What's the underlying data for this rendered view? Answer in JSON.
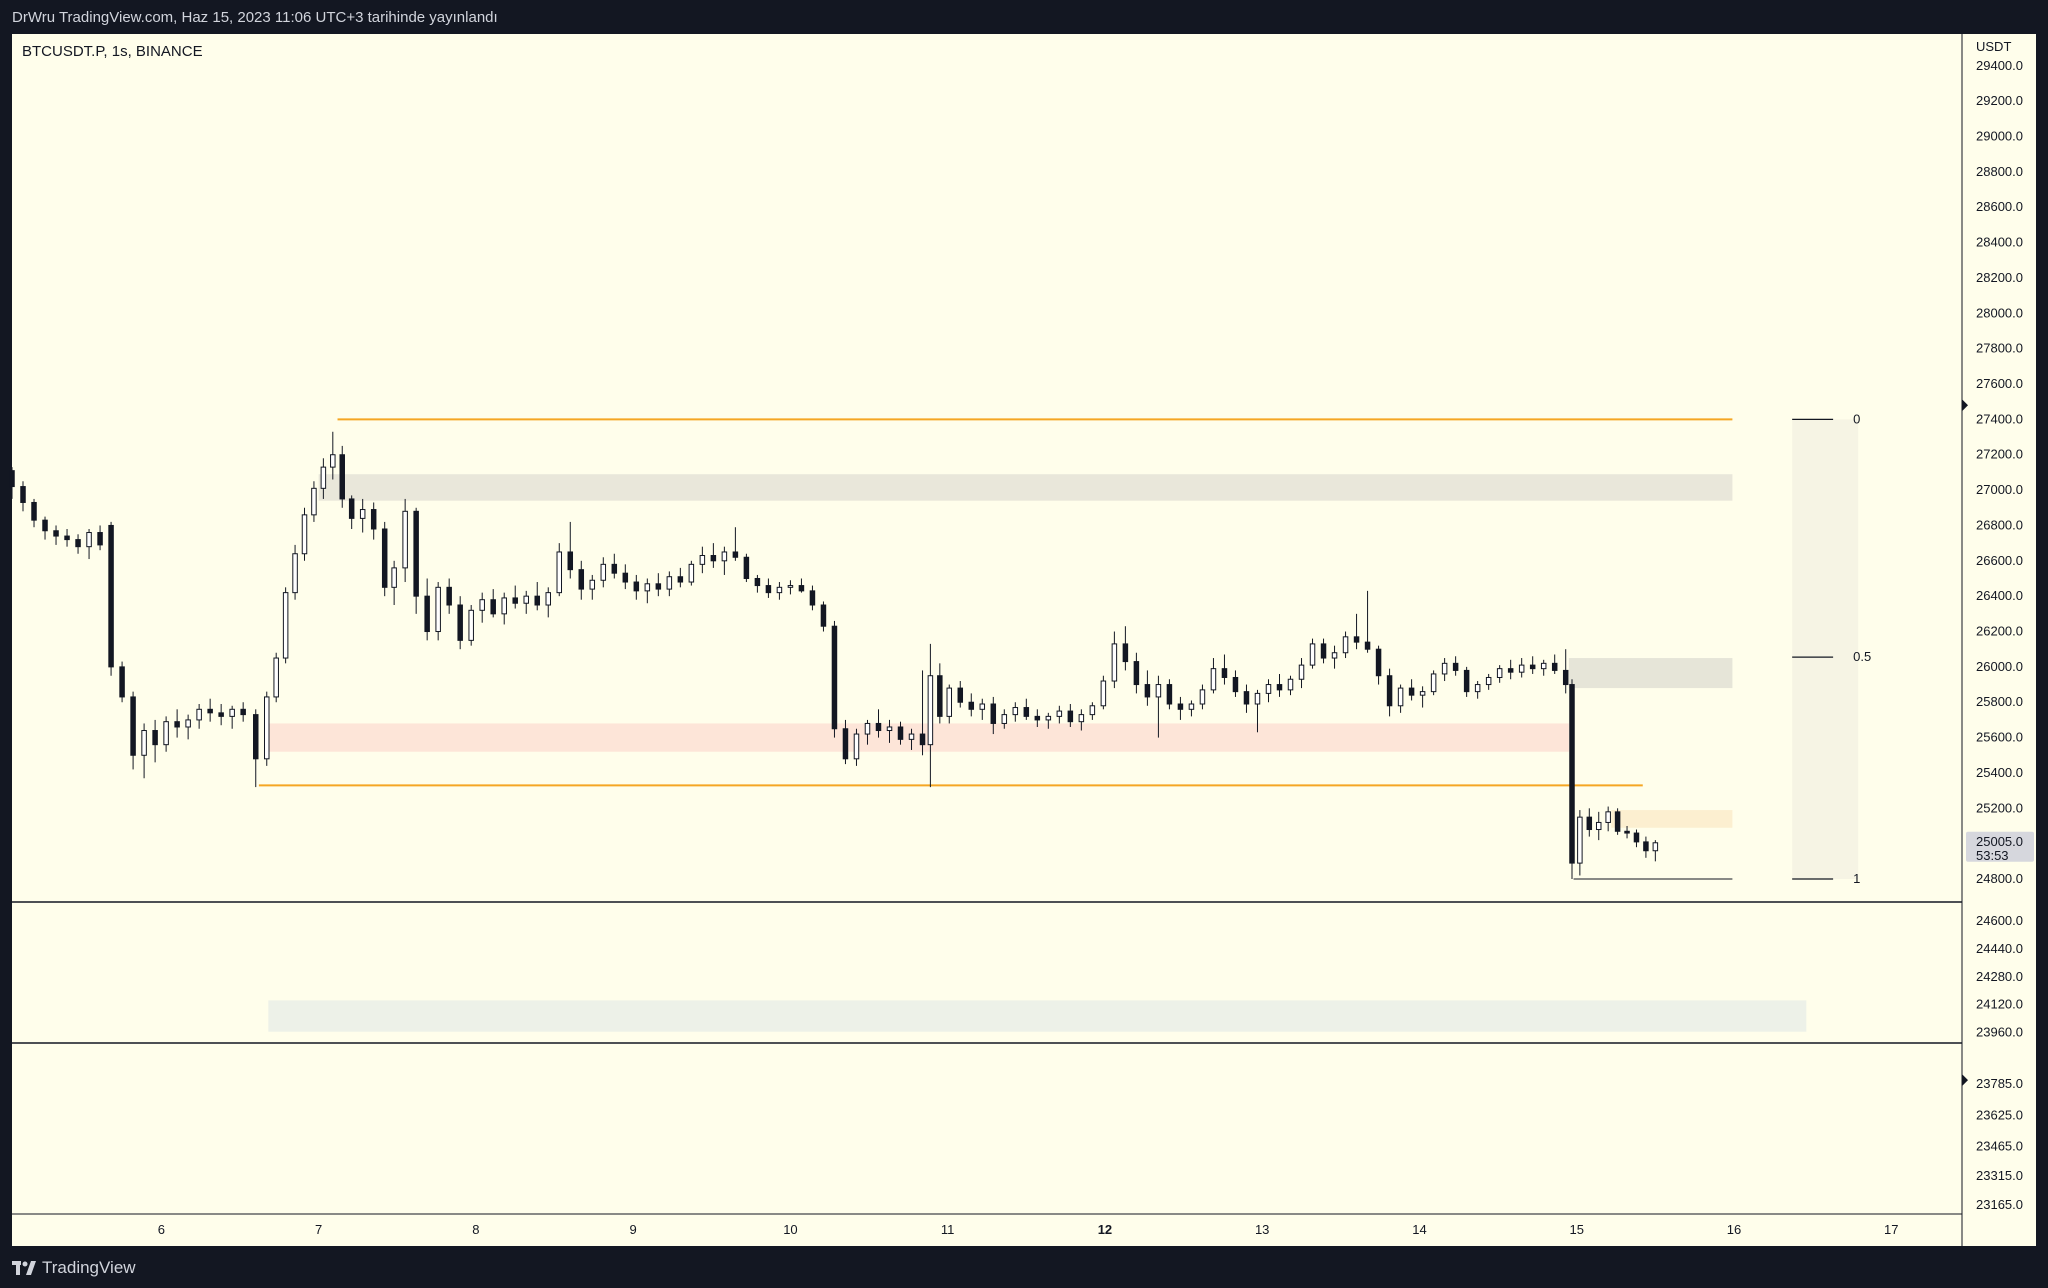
{
  "header": {
    "published": "DrWru TradingView.com, Haz 15, 2023 11:06 UTC+3 tarihinde yayınlandı"
  },
  "footer": {
    "brand": "TradingView",
    "logo_icon": "tradingview-logo-icon"
  },
  "chart_data": {
    "type": "candlestick",
    "symbol": "BTCUSDT.P, 1s, BINANCE",
    "currency": "USDT",
    "x_ticks": [
      {
        "label": "6",
        "day": 6,
        "bold": false
      },
      {
        "label": "7",
        "day": 7,
        "bold": false
      },
      {
        "label": "8",
        "day": 8,
        "bold": false
      },
      {
        "label": "9",
        "day": 9,
        "bold": false
      },
      {
        "label": "10",
        "day": 10,
        "bold": false
      },
      {
        "label": "11",
        "day": 11,
        "bold": false
      },
      {
        "label": "12",
        "day": 12,
        "bold": true
      },
      {
        "label": "13",
        "day": 13,
        "bold": false
      },
      {
        "label": "14",
        "day": 14,
        "bold": false
      },
      {
        "label": "15",
        "day": 15,
        "bold": false
      },
      {
        "label": "16",
        "day": 16,
        "bold": false
      },
      {
        "label": "17",
        "day": 17,
        "bold": false
      }
    ],
    "x_range": [
      5.05,
      17.45
    ],
    "main_pane": {
      "y_range": [
        24670,
        29580
      ],
      "y_ticks": [
        "29400.0",
        "29200.0",
        "29000.0",
        "28800.0",
        "28600.0",
        "28400.0",
        "28200.0",
        "28000.0",
        "27800.0",
        "27600.0",
        "27400.0",
        "27200.0",
        "27000.0",
        "26800.0",
        "26600.0",
        "26400.0",
        "26200.0",
        "26000.0",
        "25800.0",
        "25600.0",
        "25400.0",
        "25200.0",
        "24800.0"
      ],
      "last_price": "25005.0",
      "countdown": "53:53"
    },
    "lower_pane_1": {
      "y_range": [
        23900,
        24710
      ],
      "y_ticks": [
        "24600.0",
        "24440.0",
        "24280.0",
        "24120.0",
        "23960.0"
      ]
    },
    "lower_pane_2": {
      "y_range": [
        23120,
        23995
      ],
      "y_ticks": [
        "23785.0",
        "23625.0",
        "23465.0",
        "23315.0",
        "23165.0"
      ]
    },
    "range_lines": [
      {
        "name": "range-high-line",
        "x0": 7.12,
        "x1": 15.99,
        "y": 27400,
        "color": "#f5a623"
      },
      {
        "name": "range-low-line",
        "x0": 6.62,
        "x1": 15.42,
        "y": 25330,
        "color": "#f5a623"
      }
    ],
    "low_line": {
      "x0": 14.98,
      "x1": 15.99,
      "y": 24800
    },
    "zones": [
      {
        "name": "supply-zone-top",
        "x0": 7.0,
        "x1": 15.99,
        "y0": 26940,
        "y1": 27090,
        "color": "#e9e7da"
      },
      {
        "name": "demand-zone",
        "x0": 6.68,
        "x1": 14.95,
        "y0": 25520,
        "y1": 25680,
        "color": "#fde5d8"
      },
      {
        "name": "supply-zone-right",
        "x0": 14.95,
        "x1": 15.99,
        "y0": 25880,
        "y1": 26050,
        "color": "#e6e5d8"
      },
      {
        "name": "fvg-zone",
        "x0": 15.22,
        "x1": 15.99,
        "y0": 25090,
        "y1": 25190,
        "color": "#fcefd0"
      }
    ],
    "lower_zone": {
      "x0": 6.68,
      "x1": 16.46,
      "y0": 23965,
      "y1": 24145,
      "color": "#edf1e8"
    },
    "fib": {
      "x0": 16.37,
      "x1": 16.79,
      "levels": [
        {
          "label": "0",
          "y": 27400
        },
        {
          "label": "0.5",
          "y": 26055
        },
        {
          "label": "1",
          "y": 24800
        }
      ],
      "color": "#f6f4e4"
    },
    "candles": [
      [
        5.05,
        27110,
        27130,
        26950,
        27020
      ],
      [
        5.12,
        27020,
        27050,
        26880,
        26930
      ],
      [
        5.19,
        26930,
        26950,
        26790,
        26830
      ],
      [
        5.26,
        26830,
        26850,
        26720,
        26770
      ],
      [
        5.33,
        26770,
        26800,
        26690,
        26740
      ],
      [
        5.4,
        26740,
        26780,
        26680,
        26720
      ],
      [
        5.47,
        26720,
        26750,
        26640,
        26680
      ],
      [
        5.54,
        26680,
        26780,
        26610,
        26760
      ],
      [
        5.61,
        26760,
        26800,
        26660,
        26690
      ],
      [
        5.68,
        26800,
        26820,
        25950,
        26000
      ],
      [
        5.75,
        26000,
        26030,
        25800,
        25830
      ],
      [
        5.82,
        25830,
        25860,
        25420,
        25500
      ],
      [
        5.89,
        25500,
        25680,
        25370,
        25640
      ],
      [
        5.96,
        25640,
        25700,
        25460,
        25560
      ],
      [
        6.03,
        25560,
        25720,
        25520,
        25690
      ],
      [
        6.1,
        25690,
        25760,
        25600,
        25660
      ],
      [
        6.17,
        25660,
        25730,
        25590,
        25700
      ],
      [
        6.24,
        25700,
        25790,
        25650,
        25760
      ],
      [
        6.31,
        25760,
        25820,
        25690,
        25740
      ],
      [
        6.38,
        25740,
        25790,
        25670,
        25720
      ],
      [
        6.45,
        25720,
        25780,
        25650,
        25760
      ],
      [
        6.52,
        25760,
        25800,
        25690,
        25730
      ],
      [
        6.6,
        25730,
        25760,
        25320,
        25480
      ],
      [
        6.67,
        25480,
        25860,
        25440,
        25830
      ],
      [
        6.73,
        25830,
        26080,
        25800,
        26050
      ],
      [
        6.79,
        26050,
        26450,
        26020,
        26420
      ],
      [
        6.85,
        26420,
        26690,
        26380,
        26640
      ],
      [
        6.91,
        26640,
        26900,
        26600,
        26860
      ],
      [
        6.97,
        26860,
        27050,
        26820,
        27010
      ],
      [
        7.03,
        27010,
        27180,
        26950,
        27130
      ],
      [
        7.09,
        27130,
        27330,
        27060,
        27200
      ],
      [
        7.15,
        27200,
        27250,
        26900,
        26950
      ],
      [
        7.21,
        26950,
        26970,
        26780,
        26840
      ],
      [
        7.28,
        26840,
        26950,
        26760,
        26890
      ],
      [
        7.35,
        26890,
        26930,
        26720,
        26780
      ],
      [
        7.42,
        26780,
        26820,
        26400,
        26450
      ],
      [
        7.48,
        26450,
        26600,
        26350,
        26560
      ],
      [
        7.55,
        26560,
        26950,
        26480,
        26880
      ],
      [
        7.62,
        26880,
        26900,
        26300,
        26400
      ],
      [
        7.69,
        26400,
        26500,
        26150,
        26200
      ],
      [
        7.76,
        26200,
        26480,
        26150,
        26450
      ],
      [
        7.83,
        26450,
        26500,
        26300,
        26350
      ],
      [
        7.9,
        26350,
        26400,
        26100,
        26150
      ],
      [
        7.97,
        26150,
        26350,
        26120,
        26320
      ],
      [
        8.04,
        26320,
        26420,
        26250,
        26380
      ],
      [
        8.11,
        26380,
        26440,
        26280,
        26300
      ],
      [
        8.18,
        26300,
        26420,
        26240,
        26390
      ],
      [
        8.25,
        26390,
        26460,
        26330,
        26360
      ],
      [
        8.32,
        26360,
        26430,
        26300,
        26400
      ],
      [
        8.39,
        26400,
        26480,
        26320,
        26350
      ],
      [
        8.46,
        26350,
        26450,
        26280,
        26420
      ],
      [
        8.53,
        26420,
        26700,
        26400,
        26650
      ],
      [
        8.6,
        26650,
        26820,
        26500,
        26550
      ],
      [
        8.67,
        26550,
        26600,
        26380,
        26440
      ],
      [
        8.74,
        26440,
        26520,
        26380,
        26490
      ],
      [
        8.81,
        26490,
        26620,
        26450,
        26580
      ],
      [
        8.88,
        26580,
        26640,
        26500,
        26530
      ],
      [
        8.95,
        26530,
        26580,
        26440,
        26480
      ],
      [
        9.02,
        26480,
        26520,
        26380,
        26430
      ],
      [
        9.09,
        26430,
        26500,
        26360,
        26470
      ],
      [
        9.16,
        26470,
        26530,
        26400,
        26440
      ],
      [
        9.23,
        26440,
        26540,
        26400,
        26510
      ],
      [
        9.3,
        26510,
        26560,
        26450,
        26480
      ],
      [
        9.37,
        26480,
        26600,
        26460,
        26580
      ],
      [
        9.44,
        26580,
        26680,
        26530,
        26630
      ],
      [
        9.51,
        26630,
        26700,
        26560,
        26600
      ],
      [
        9.58,
        26600,
        26680,
        26520,
        26650
      ],
      [
        9.65,
        26650,
        26790,
        26600,
        26620
      ],
      [
        9.72,
        26620,
        26640,
        26480,
        26500
      ],
      [
        9.79,
        26500,
        26520,
        26420,
        26460
      ],
      [
        9.86,
        26460,
        26500,
        26390,
        26420
      ],
      [
        9.93,
        26420,
        26480,
        26380,
        26450
      ],
      [
        10.0,
        26450,
        26490,
        26410,
        26460
      ],
      [
        10.07,
        26460,
        26500,
        26420,
        26430
      ],
      [
        10.14,
        26430,
        26460,
        26320,
        26350
      ],
      [
        10.21,
        26350,
        26370,
        26200,
        26230
      ],
      [
        10.28,
        26230,
        26260,
        25600,
        25650
      ],
      [
        10.35,
        25650,
        25700,
        25450,
        25480
      ],
      [
        10.42,
        25480,
        25650,
        25440,
        25620
      ],
      [
        10.49,
        25620,
        25700,
        25560,
        25680
      ],
      [
        10.56,
        25680,
        25760,
        25600,
        25640
      ],
      [
        10.63,
        25640,
        25700,
        25570,
        25660
      ],
      [
        10.7,
        25660,
        25690,
        25560,
        25590
      ],
      [
        10.77,
        25590,
        25650,
        25530,
        25620
      ],
      [
        10.84,
        25620,
        25980,
        25500,
        25560
      ],
      [
        10.89,
        25560,
        26130,
        25320,
        25950
      ],
      [
        10.95,
        25950,
        26020,
        25680,
        25720
      ],
      [
        11.01,
        25720,
        25900,
        25680,
        25880
      ],
      [
        11.08,
        25880,
        25920,
        25770,
        25800
      ],
      [
        11.15,
        25800,
        25850,
        25720,
        25760
      ],
      [
        11.22,
        25760,
        25820,
        25700,
        25790
      ],
      [
        11.29,
        25790,
        25830,
        25620,
        25680
      ],
      [
        11.36,
        25680,
        25760,
        25650,
        25730
      ],
      [
        11.43,
        25730,
        25800,
        25690,
        25770
      ],
      [
        11.5,
        25770,
        25820,
        25700,
        25720
      ],
      [
        11.57,
        25720,
        25760,
        25660,
        25700
      ],
      [
        11.64,
        25700,
        25740,
        25650,
        25720
      ],
      [
        11.71,
        25720,
        25780,
        25680,
        25750
      ],
      [
        11.78,
        25750,
        25790,
        25660,
        25690
      ],
      [
        11.85,
        25690,
        25760,
        25640,
        25730
      ],
      [
        11.92,
        25730,
        25800,
        25700,
        25780
      ],
      [
        11.99,
        25780,
        25950,
        25760,
        25920
      ],
      [
        12.06,
        25920,
        26200,
        25880,
        26130
      ],
      [
        12.13,
        26130,
        26230,
        25980,
        26030
      ],
      [
        12.2,
        26030,
        26080,
        25850,
        25900
      ],
      [
        12.27,
        25900,
        25980,
        25780,
        25830
      ],
      [
        12.34,
        25830,
        25950,
        25600,
        25900
      ],
      [
        12.41,
        25900,
        25930,
        25760,
        25790
      ],
      [
        12.48,
        25790,
        25830,
        25700,
        25760
      ],
      [
        12.55,
        25760,
        25810,
        25720,
        25790
      ],
      [
        12.62,
        25790,
        25900,
        25760,
        25870
      ],
      [
        12.69,
        25870,
        26050,
        25850,
        25990
      ],
      [
        12.76,
        25990,
        26070,
        25900,
        25940
      ],
      [
        12.83,
        25940,
        25980,
        25830,
        25860
      ],
      [
        12.9,
        25860,
        25900,
        25740,
        25790
      ],
      [
        12.97,
        25790,
        25870,
        25630,
        25850
      ],
      [
        13.04,
        25850,
        25930,
        25800,
        25900
      ],
      [
        13.11,
        25900,
        25960,
        25830,
        25870
      ],
      [
        13.18,
        25870,
        25950,
        25840,
        25930
      ],
      [
        13.25,
        25930,
        26050,
        25880,
        26010
      ],
      [
        13.32,
        26010,
        26160,
        25990,
        26130
      ],
      [
        13.39,
        26130,
        26160,
        26020,
        26050
      ],
      [
        13.46,
        26050,
        26120,
        25990,
        26080
      ],
      [
        13.53,
        26080,
        26200,
        26050,
        26170
      ],
      [
        13.6,
        26170,
        26300,
        26100,
        26140
      ],
      [
        13.67,
        26140,
        26430,
        26080,
        26100
      ],
      [
        13.74,
        26100,
        26120,
        25900,
        25950
      ],
      [
        13.81,
        25950,
        25990,
        25720,
        25780
      ],
      [
        13.88,
        25780,
        25900,
        25740,
        25880
      ],
      [
        13.95,
        25880,
        25930,
        25810,
        25840
      ],
      [
        14.02,
        25840,
        25890,
        25770,
        25860
      ],
      [
        14.09,
        25860,
        25980,
        25840,
        25960
      ],
      [
        14.16,
        25960,
        26050,
        25920,
        26020
      ],
      [
        14.23,
        26020,
        26060,
        25950,
        25980
      ],
      [
        14.3,
        25980,
        26000,
        25830,
        25860
      ],
      [
        14.37,
        25860,
        25920,
        25820,
        25900
      ],
      [
        14.44,
        25900,
        25960,
        25870,
        25940
      ],
      [
        14.51,
        25940,
        26010,
        25910,
        25990
      ],
      [
        14.58,
        25990,
        26040,
        25930,
        25970
      ],
      [
        14.65,
        25970,
        26050,
        25940,
        26010
      ],
      [
        14.72,
        26010,
        26060,
        25960,
        25990
      ],
      [
        14.79,
        25990,
        26040,
        25950,
        26020
      ],
      [
        14.86,
        26020,
        26070,
        25960,
        25980
      ],
      [
        14.93,
        25980,
        26100,
        25850,
        25900
      ],
      [
        14.97,
        25900,
        25930,
        24800,
        24890
      ],
      [
        15.02,
        24890,
        25190,
        24820,
        25150
      ],
      [
        15.08,
        25150,
        25200,
        25040,
        25080
      ],
      [
        15.14,
        25080,
        25180,
        25020,
        25120
      ],
      [
        15.2,
        25120,
        25210,
        25070,
        25180
      ],
      [
        15.26,
        25180,
        25200,
        25050,
        25070
      ],
      [
        15.32,
        25070,
        25100,
        25030,
        25060
      ],
      [
        15.38,
        25060,
        25080,
        24980,
        25010
      ],
      [
        15.44,
        25010,
        25040,
        24920,
        24960
      ],
      [
        15.5,
        24960,
        25020,
        24900,
        25005
      ]
    ],
    "lower_line_y": 24710
  }
}
